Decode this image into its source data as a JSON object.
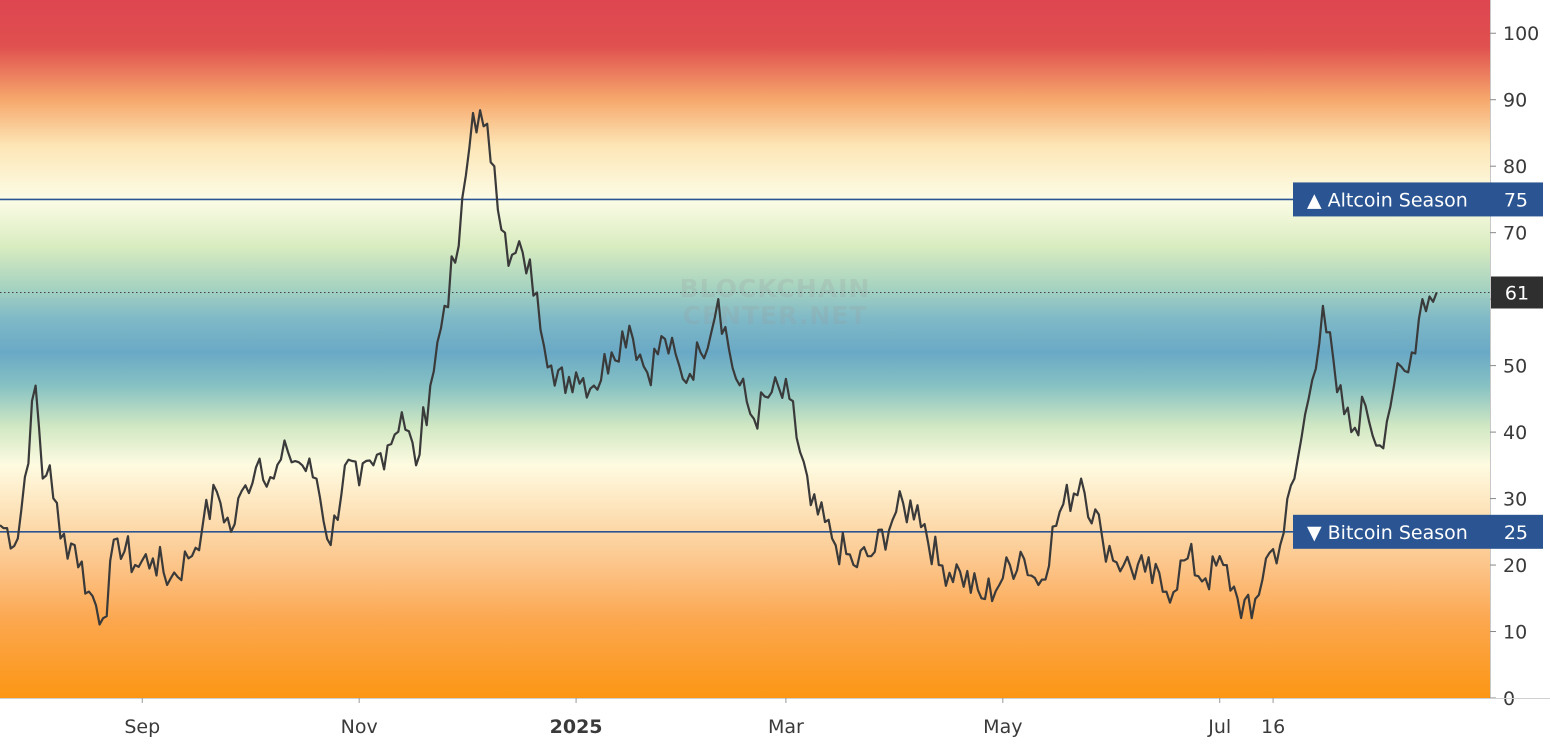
{
  "chart_data": {
    "type": "line",
    "title": "",
    "xlabel": "",
    "ylabel": "",
    "ylim": [
      0,
      105
    ],
    "yticks": [
      0,
      10,
      20,
      30,
      40,
      50,
      60,
      70,
      80,
      90,
      100
    ],
    "x_range": [
      "2024-07-23",
      "2025-09-15"
    ],
    "xticks": [
      {
        "label": "Sep",
        "date": "2024-09-01",
        "bold": false
      },
      {
        "label": "Nov",
        "date": "2024-11-01",
        "bold": false
      },
      {
        "label": "2025",
        "date": "2025-01-01",
        "bold": true
      },
      {
        "label": "Mar",
        "date": "2025-03-01",
        "bold": false
      },
      {
        "label": "May",
        "date": "2025-05-01",
        "bold": false
      },
      {
        "label": "Jul",
        "date": "2025-07-01",
        "bold": false
      },
      {
        "label": "16",
        "date": "2025-07-16",
        "bold": false
      }
    ],
    "background_gradient": [
      {
        "value": 105,
        "color": "#de4550"
      },
      {
        "value": 98,
        "color": "#e0504f"
      },
      {
        "value": 90,
        "color": "#f6a86c"
      },
      {
        "value": 83,
        "color": "#fde6b6"
      },
      {
        "value": 75,
        "color": "#fcfce6"
      },
      {
        "value": 68,
        "color": "#d9ecc0"
      },
      {
        "value": 62,
        "color": "#a8d4c0"
      },
      {
        "value": 57,
        "color": "#7fb9c7"
      },
      {
        "value": 52,
        "color": "#6aa9c6"
      },
      {
        "value": 47,
        "color": "#86c1c3"
      },
      {
        "value": 41,
        "color": "#cfe7c3"
      },
      {
        "value": 35,
        "color": "#fefbe1"
      },
      {
        "value": 28,
        "color": "#fde2b8"
      },
      {
        "value": 20,
        "color": "#fcc58a"
      },
      {
        "value": 12,
        "color": "#fca851"
      },
      {
        "value": 0,
        "color": "#fc9613"
      }
    ],
    "thresholds": [
      {
        "label": "▲ Altcoin Season",
        "value": 75,
        "value_label": "75",
        "color": "#2b5592"
      },
      {
        "label": "▼ Bitcoin Season",
        "value": 25,
        "value_label": "25",
        "color": "#2b5592"
      }
    ],
    "last_value": {
      "value": 61,
      "label": "61",
      "color": "#2f2f2f"
    },
    "line_color": "#3a3a3a",
    "watermark": [
      "BLOCKCHAIN",
      "CENTER.NET"
    ],
    "series": [
      {
        "x": [
          "2024-07-23",
          "2024-07-28",
          "2024-08-02",
          "2024-08-04",
          "2024-08-06",
          "2024-08-09",
          "2024-08-13",
          "2024-08-17",
          "2024-08-21",
          "2024-08-25",
          "2024-08-30",
          "2024-09-04",
          "2024-09-09",
          "2024-09-14",
          "2024-09-18",
          "2024-09-22",
          "2024-09-26",
          "2024-09-30",
          "2024-10-04",
          "2024-10-08",
          "2024-10-12",
          "2024-10-16",
          "2024-10-20",
          "2024-10-24",
          "2024-10-28",
          "2024-11-01",
          "2024-11-05",
          "2024-11-09",
          "2024-11-13",
          "2024-11-17",
          "2024-11-21",
          "2024-11-25",
          "2024-11-29",
          "2024-12-03",
          "2024-12-06",
          "2024-12-09",
          "2024-12-13",
          "2024-12-17",
          "2024-12-21",
          "2024-12-26",
          "2025-01-01",
          "2025-01-06",
          "2025-01-11",
          "2025-01-16",
          "2025-01-21",
          "2025-01-26",
          "2025-01-31",
          "2025-02-05",
          "2025-02-10",
          "2025-02-15",
          "2025-02-20",
          "2025-02-25",
          "2025-03-02",
          "2025-03-08",
          "2025-03-14",
          "2025-03-20",
          "2025-03-26",
          "2025-04-01",
          "2025-04-07",
          "2025-04-13",
          "2025-04-19",
          "2025-04-25",
          "2025-05-01",
          "2025-05-06",
          "2025-05-11",
          "2025-05-17",
          "2025-05-23",
          "2025-05-29",
          "2025-06-04",
          "2025-06-10",
          "2025-06-16",
          "2025-06-22",
          "2025-06-27",
          "2025-07-02",
          "2025-07-06",
          "2025-07-10",
          "2025-07-14",
          "2025-07-18",
          "2025-07-22",
          "2025-07-26",
          "2025-07-30",
          "2025-08-03",
          "2025-08-07",
          "2025-08-11",
          "2025-08-15",
          "2025-08-19",
          "2025-08-23",
          "2025-08-27",
          "2025-08-31"
        ],
        "values": [
          26,
          24,
          47,
          33,
          35,
          24,
          23,
          16,
          12,
          24,
          20,
          21,
          18,
          21,
          26,
          31,
          25,
          32,
          36,
          33,
          37,
          35,
          33,
          23,
          35,
          32,
          35,
          38,
          43,
          35,
          47,
          59,
          68,
          88,
          86,
          80,
          65,
          67,
          61,
          47,
          49,
          47,
          52,
          56,
          49,
          54,
          48,
          52,
          60,
          48,
          42,
          46,
          45,
          29,
          24,
          20,
          22,
          28,
          29,
          20,
          19,
          15,
          18,
          22,
          17,
          28,
          33,
          24,
          20,
          19,
          16,
          21,
          18,
          20,
          15,
          12,
          21,
          23,
          33,
          45,
          59,
          46,
          40,
          44,
          38,
          47,
          49,
          60,
          61
        ]
      }
    ]
  }
}
